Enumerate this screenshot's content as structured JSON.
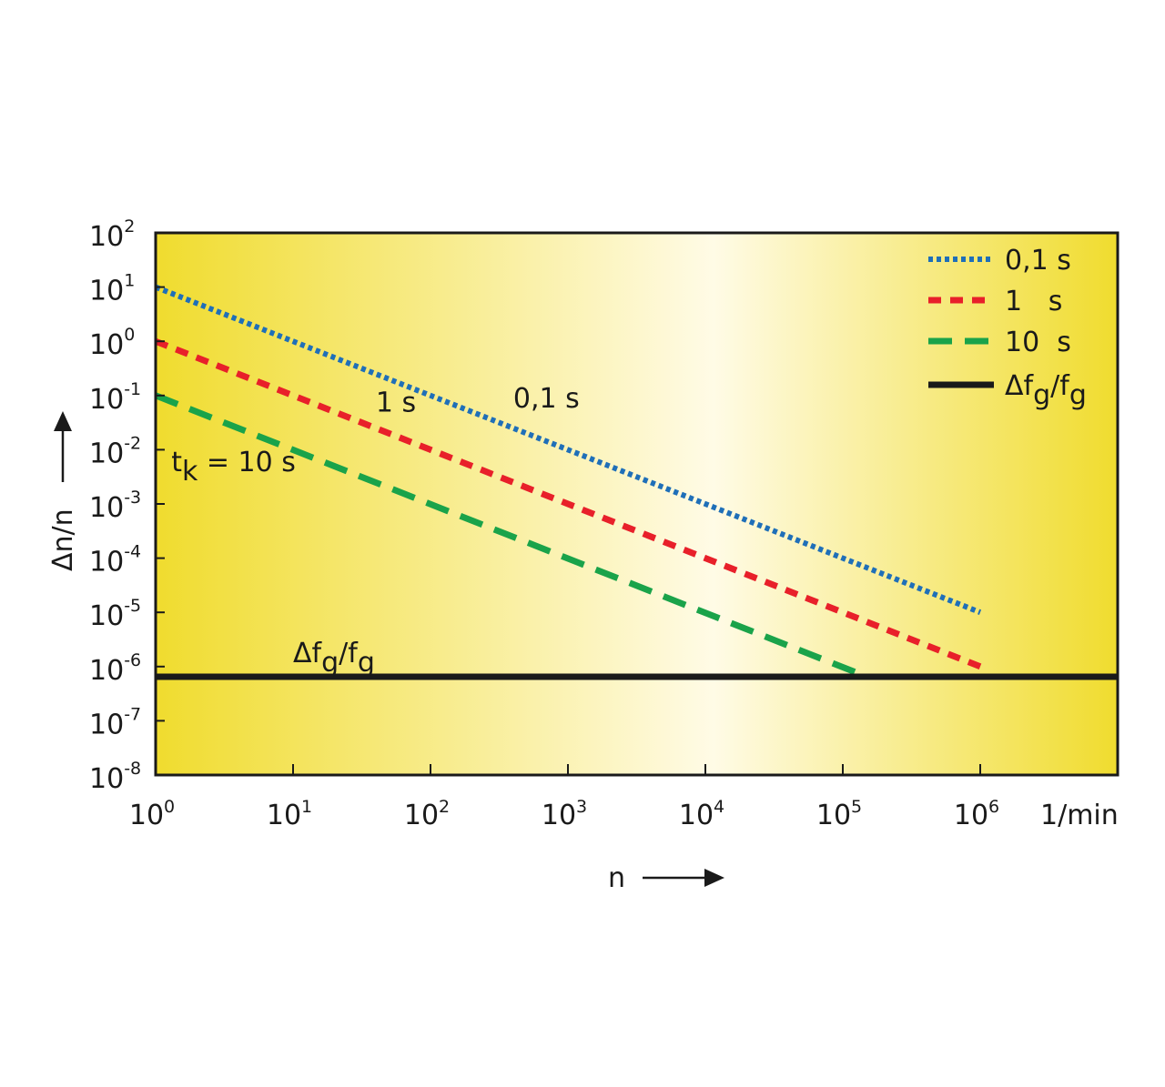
{
  "chart_data": {
    "type": "line",
    "x_scale": "log",
    "y_scale": "log",
    "xlim": [
      1,
      10000000
    ],
    "ylim": [
      1e-08,
      100
    ],
    "x_ticks": [
      {
        "value": 1,
        "base": "10",
        "exp": "0"
      },
      {
        "value": 10,
        "base": "10",
        "exp": "1"
      },
      {
        "value": 100,
        "base": "10",
        "exp": "2"
      },
      {
        "value": 1000,
        "base": "10",
        "exp": "3"
      },
      {
        "value": 10000,
        "base": "10",
        "exp": "4"
      },
      {
        "value": 100000,
        "base": "10",
        "exp": "5"
      },
      {
        "value": 1000000,
        "base": "10",
        "exp": "6"
      }
    ],
    "x_unit": "1/min",
    "y_ticks": [
      {
        "value": 100,
        "base": "10",
        "exp": "2"
      },
      {
        "value": 10,
        "base": "10",
        "exp": "1"
      },
      {
        "value": 1,
        "base": "10",
        "exp": "0"
      },
      {
        "value": 0.1,
        "base": "10",
        "exp": "-1"
      },
      {
        "value": 0.01,
        "base": "10",
        "exp": "-2"
      },
      {
        "value": 0.001,
        "base": "10",
        "exp": "-3"
      },
      {
        "value": 0.0001,
        "base": "10",
        "exp": "-4"
      },
      {
        "value": 1e-05,
        "base": "10",
        "exp": "-5"
      },
      {
        "value": 1e-06,
        "base": "10",
        "exp": "-6"
      },
      {
        "value": 1e-07,
        "base": "10",
        "exp": "-7"
      },
      {
        "value": 1e-08,
        "base": "10",
        "exp": "-8"
      }
    ],
    "xlabel": "n",
    "ylabel": "Δn/n",
    "series": [
      {
        "name": "0,1 s",
        "color": "#1f6fb8",
        "style": "dotted",
        "x": [
          1,
          1000000
        ],
        "y": [
          10,
          1e-05
        ]
      },
      {
        "name": "1   s",
        "color": "#e8202a",
        "style": "dashed",
        "x": [
          1,
          1000000
        ],
        "y": [
          1,
          1e-06
        ]
      },
      {
        "name": "10  s",
        "color": "#1aa34a",
        "style": "longdash",
        "x": [
          1,
          150000,
          600000
        ],
        "y": [
          0.1,
          6.5e-07,
          6.5e-07
        ]
      },
      {
        "name": "Δf",
        "name_sub": "g",
        "name_mid": "/f",
        "name_sub2": "g",
        "color": "#1a1a1a",
        "style": "solid",
        "x": [
          1,
          10000000
        ],
        "y": [
          6.5e-07,
          6.5e-07
        ]
      }
    ],
    "annotations": [
      {
        "id": "ann-01s",
        "text": "0,1 s",
        "x": 400,
        "y": 0.06
      },
      {
        "id": "ann-1s",
        "text": "1 s",
        "x": 40,
        "y": 0.05
      },
      {
        "id": "ann-10s",
        "pre": "t",
        "sub": "k",
        "post": " = 10 s",
        "x": 1.3,
        "y": 0.004
      },
      {
        "id": "ann-fg",
        "pre": "Δf",
        "sub": "g",
        "mid": "/f",
        "sub2": "g",
        "x": 10,
        "y": 1.2e-06
      }
    ],
    "legend_position": "top-right",
    "background": "yellow-to-light-gradient",
    "grid": false,
    "colors": {
      "bg_edge": "#f0dc2e",
      "bg_center": "#fffbe6",
      "axis": "#1a1a1a"
    }
  }
}
